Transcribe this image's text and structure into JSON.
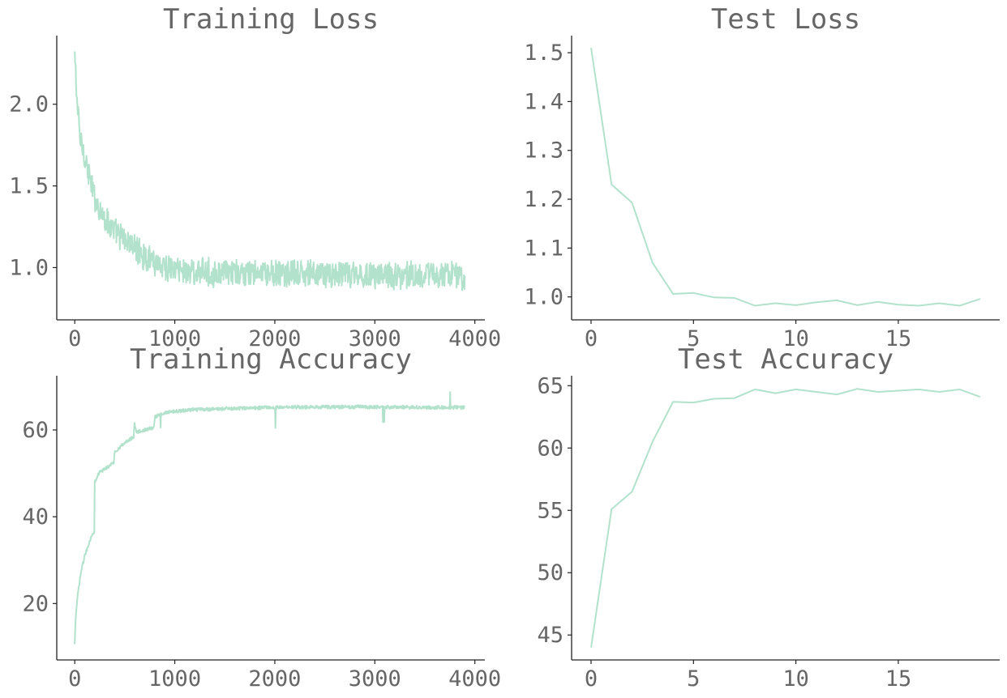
{
  "colors": {
    "line": "#b2e2cc",
    "text": "#666666",
    "axis": "#222222"
  },
  "chart_data": [
    {
      "type": "line",
      "title": "Training Loss",
      "xlabel": "",
      "ylabel": "",
      "xlim": [
        -180,
        4100
      ],
      "ylim": [
        0.68,
        2.42
      ],
      "xticks": [
        0,
        1000,
        2000,
        3000,
        4000
      ],
      "xtick_labels": [
        "0",
        "1000",
        "2000",
        "3000",
        "4000"
      ],
      "yticks": [
        1.0,
        1.5,
        2.0
      ],
      "ytick_labels": [
        "1.0",
        "1.5",
        "2.0"
      ],
      "grid": false,
      "noise": 0.06,
      "series": [
        {
          "x": [
            0,
            20,
            50,
            100,
            150,
            200,
            300,
            400,
            500,
            600,
            700,
            800,
            900,
            1000,
            1200,
            1500,
            2000,
            2500,
            3000,
            3500,
            3900
          ],
          "y": [
            2.3,
            2.05,
            1.8,
            1.68,
            1.55,
            1.42,
            1.3,
            1.22,
            1.17,
            1.12,
            1.07,
            1.04,
            1.01,
            0.99,
            0.975,
            0.965,
            0.96,
            0.96,
            0.955,
            0.955,
            0.95
          ]
        }
      ]
    },
    {
      "type": "line",
      "title": "Test Loss",
      "xlabel": "",
      "ylabel": "",
      "xlim": [
        -0.95,
        19.95
      ],
      "ylim": [
        0.953,
        1.535
      ],
      "xticks": [
        0,
        5,
        10,
        15
      ],
      "xtick_labels": [
        "0",
        "5",
        "10",
        "15"
      ],
      "yticks": [
        1.0,
        1.1,
        1.2,
        1.3,
        1.4,
        1.5
      ],
      "ytick_labels": [
        "1.0",
        "1.1",
        "1.2",
        "1.3",
        "1.4",
        "1.5"
      ],
      "grid": false,
      "series": [
        {
          "x": [
            0,
            1,
            2,
            3,
            4,
            5,
            6,
            7,
            8,
            9,
            10,
            11,
            12,
            13,
            14,
            15,
            16,
            17,
            18,
            19
          ],
          "y": [
            1.51,
            1.23,
            1.193,
            1.07,
            1.006,
            1.008,
            0.999,
            0.998,
            0.982,
            0.987,
            0.983,
            0.989,
            0.993,
            0.983,
            0.99,
            0.984,
            0.982,
            0.987,
            0.982,
            0.996
          ]
        }
      ]
    },
    {
      "type": "line",
      "title": "Training Accuracy",
      "xlabel": "",
      "ylabel": "",
      "xlim": [
        -180,
        4100
      ],
      "ylim": [
        7,
        72.5
      ],
      "xticks": [
        0,
        1000,
        2000,
        3000,
        4000
      ],
      "xtick_labels": [
        "0",
        "1000",
        "2000",
        "3000",
        "4000"
      ],
      "yticks": [
        20,
        40,
        60
      ],
      "ytick_labels": [
        "20",
        "40",
        "60"
      ],
      "grid": false,
      "noise": 0.4,
      "series": [
        {
          "x": [
            0,
            10,
            30,
            60,
            100,
            150,
            195,
            196,
            240,
            300,
            390,
            400,
            500,
            590,
            595,
            620,
            700,
            790,
            800,
            900,
            1000,
            1200,
            1500,
            2000,
            2500,
            3000,
            3500,
            3900
          ],
          "y": [
            10.5,
            17,
            22,
            27,
            31,
            34.5,
            36.8,
            48,
            50,
            51,
            52.5,
            55,
            57,
            58.5,
            61.5,
            59.5,
            60,
            60.5,
            63,
            64,
            64.3,
            64.7,
            64.9,
            65.2,
            65.3,
            65.3,
            65.2,
            65.2
          ]
        }
      ]
    },
    {
      "type": "line",
      "title": "Test Accuracy",
      "xlabel": "",
      "ylabel": "",
      "xlim": [
        -0.95,
        19.95
      ],
      "ylim": [
        43,
        65.8
      ],
      "xticks": [
        0,
        5,
        10,
        15
      ],
      "xtick_labels": [
        "0",
        "5",
        "10",
        "15"
      ],
      "yticks": [
        45,
        50,
        55,
        60,
        65
      ],
      "ytick_labels": [
        "45",
        "50",
        "55",
        "60",
        "65"
      ],
      "grid": false,
      "series": [
        {
          "x": [
            0,
            1,
            2,
            3,
            4,
            5,
            6,
            7,
            8,
            9,
            10,
            11,
            12,
            13,
            14,
            15,
            16,
            17,
            18,
            19
          ],
          "y": [
            44,
            55.1,
            56.5,
            60.5,
            63.7,
            63.65,
            63.95,
            64.0,
            64.7,
            64.4,
            64.7,
            64.5,
            64.3,
            64.75,
            64.5,
            64.6,
            64.7,
            64.5,
            64.7,
            64.1
          ]
        }
      ]
    }
  ]
}
